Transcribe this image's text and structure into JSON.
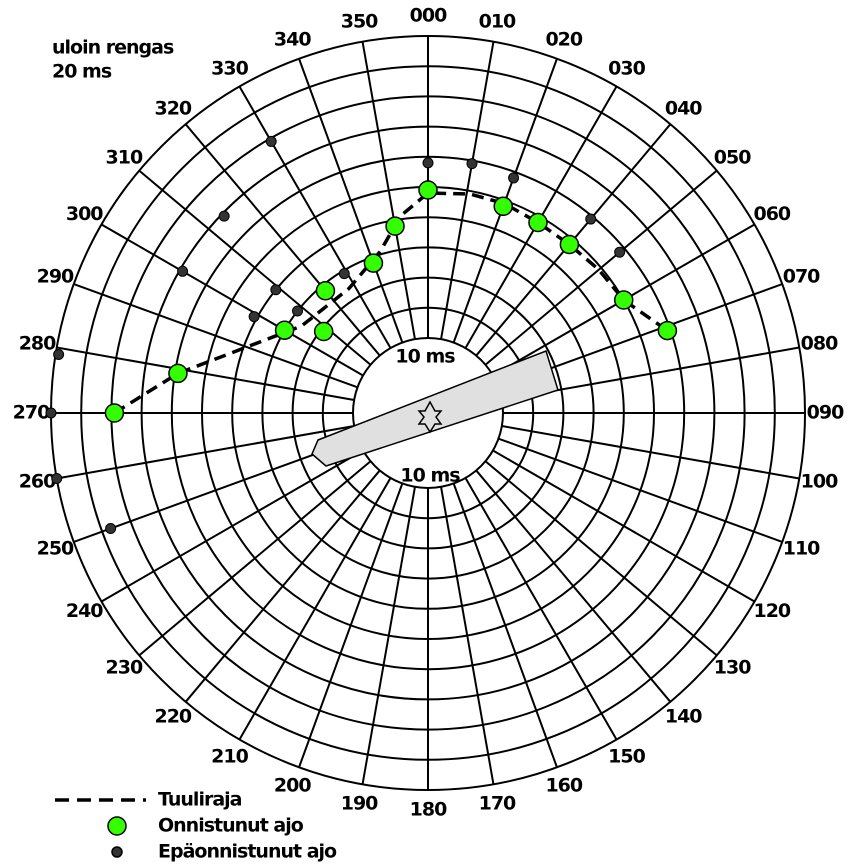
{
  "chart_data": {
    "type": "polar",
    "outer_ring_label": "uloin rengas",
    "outer_ring_value": "20 ms",
    "inner_ring_label": "10 ms",
    "rlim": [
      10,
      20
    ],
    "rticks": [
      10,
      11,
      12,
      13,
      14,
      15,
      16,
      17,
      18,
      19,
      20
    ],
    "thetaticks": [
      {
        "value": 0,
        "label": "000"
      },
      {
        "value": 10,
        "label": "010"
      },
      {
        "value": 20,
        "label": "020"
      },
      {
        "value": 30,
        "label": "030"
      },
      {
        "value": 40,
        "label": "040"
      },
      {
        "value": 50,
        "label": "050"
      },
      {
        "value": 60,
        "label": "060"
      },
      {
        "value": 70,
        "label": "070"
      },
      {
        "value": 80,
        "label": "080"
      },
      {
        "value": 90,
        "label": "090"
      },
      100,
      110,
      120,
      130,
      140,
      150,
      160,
      170,
      180,
      190,
      200,
      210,
      220,
      230,
      240,
      250,
      260,
      270,
      280,
      290,
      300,
      310,
      320,
      330,
      340,
      350
    ],
    "series": [
      {
        "name": "Tuuliraja",
        "type": "line",
        "color": "#000000",
        "theta": [
          270,
          279,
          304.5,
          327.6,
          343.6,
          352,
          0,
          10.8,
          20,
          30,
          40,
          50,
          60,
          71
        ],
        "values": [
          17.9,
          15.9,
          12.6,
          12.4,
          13.1,
          14.1,
          14.8,
          14.9,
          14.9,
          14.8,
          14.8,
          14.9,
          15.0,
          15.9
        ]
      },
      {
        "name": "Onnistunut ajo",
        "type": "scatter",
        "color": "#33ff00",
        "theta": [
          0,
          20,
          30,
          40,
          60,
          71,
          350,
          340,
          320,
          300,
          308,
          279,
          270
        ],
        "values": [
          14.9,
          14.8,
          14.8,
          14.8,
          15.0,
          15.9,
          13.8,
          12.8,
          12.8,
          13.0,
          11.9,
          15.9,
          17.9
        ]
      },
      {
        "name": "Epäonnistunut ajo",
        "type": "scatter",
        "color": "#333333",
        "theta": [
          0,
          10,
          20,
          40,
          50,
          330,
          314,
          300,
          309,
          329,
          308,
          299,
          279,
          270,
          260,
          250
        ],
        "values": [
          15.8,
          15.9,
          15.8,
          15.9,
          15.8,
          17.9,
          16.9,
          16.9,
          14.0,
          12.9,
          13.0,
          14.1,
          19.9,
          20,
          20,
          18.7
        ]
      }
    ]
  }
}
